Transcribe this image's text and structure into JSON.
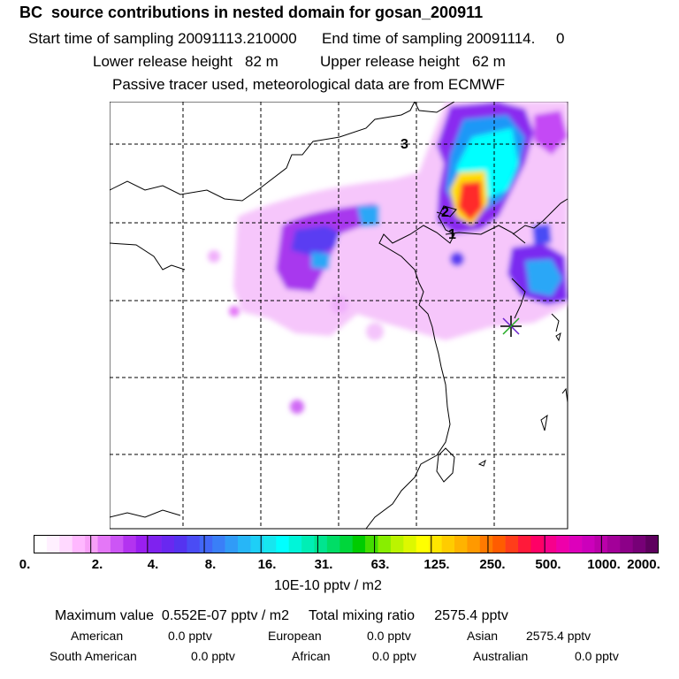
{
  "header": {
    "title": "BC  source contributions in nested domain for gosan_200911",
    "line1": "Start time of sampling 20091113.210000      End time of sampling 20091114.     0",
    "line2": "Lower release height   82 m          Upper release height   62 m",
    "line3": "Passive tracer used, meteorological data are from ECMWF"
  },
  "map": {
    "grid_labels": [
      "3",
      "2",
      "1"
    ],
    "station_marker": "asterisk-icon"
  },
  "colorbar": {
    "tick_labels": [
      "0.",
      "2.",
      "4.",
      "8.",
      "16.",
      "31.",
      "63.",
      "125.",
      "250.",
      "500.",
      "1000.",
      "2000."
    ],
    "units": "10E-10 pptv / m2",
    "colors": [
      "#ffffff",
      "#fff0ff",
      "#ffd9ff",
      "#ffb8ff",
      "#f7a0f7",
      "#e477f7",
      "#cc55f5",
      "#b333f0",
      "#9a1ff0",
      "#7f22ef",
      "#6928f0",
      "#5533f0",
      "#4a4cf5",
      "#4267f7",
      "#3a7ff7",
      "#309bf7",
      "#27b6f7",
      "#1ecff7",
      "#17e6ef",
      "#00ffff",
      "#00f5d9",
      "#00eeb5",
      "#00e58f",
      "#00dd66",
      "#00d63b",
      "#00cc00",
      "#44dd00",
      "#88ee00",
      "#bbf400",
      "#ddf800",
      "#ffff00",
      "#ffe600",
      "#ffcc00",
      "#ffb300",
      "#ff9900",
      "#ff7a00",
      "#ff5c00",
      "#ff3d1a",
      "#ff1a3a",
      "#ff0066",
      "#f7008c",
      "#ee00aa",
      "#dd00bb",
      "#cc00bb",
      "#bb00aa",
      "#a30099",
      "#8c0088",
      "#770077",
      "#5e005e"
    ]
  },
  "footer": {
    "max_value_text": "Maximum value  0.552E-07 pptv / m2     Total mixing ratio     2575.4 pptv",
    "row1": [
      {
        "label": "American",
        "value": "0.0 pptv"
      },
      {
        "label": "European",
        "value": "0.0 pptv"
      },
      {
        "label": "Asian",
        "value": "2575.4 pptv"
      }
    ],
    "row2": [
      {
        "label": "South American",
        "value": "0.0 pptv"
      },
      {
        "label": "African",
        "value": "0.0 pptv"
      },
      {
        "label": "Australian",
        "value": "0.0 pptv"
      }
    ]
  }
}
